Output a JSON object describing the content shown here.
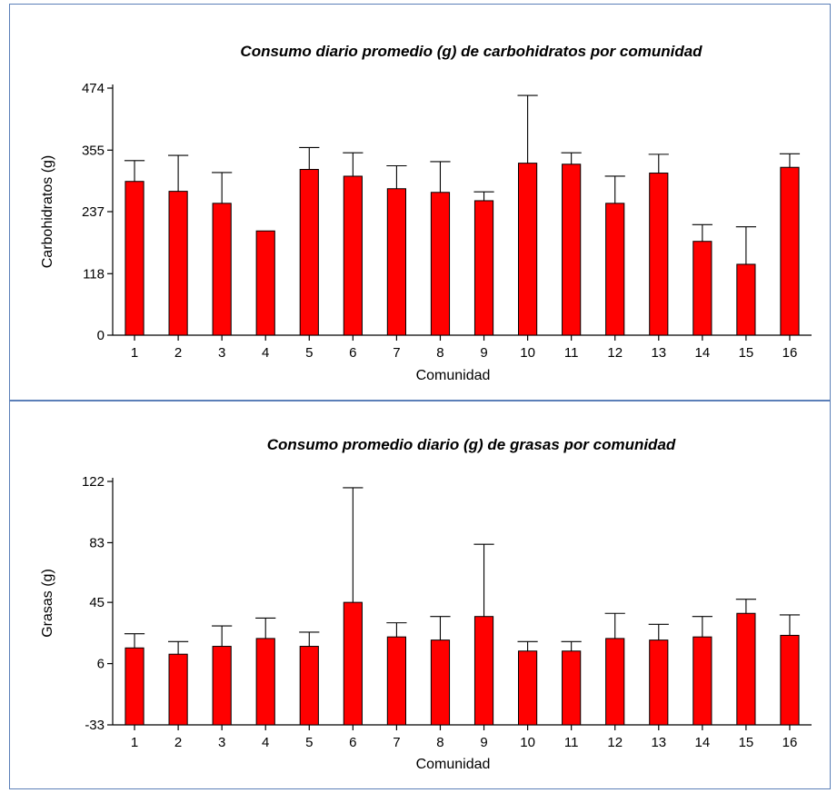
{
  "chart_data": [
    {
      "type": "bar",
      "title": "Consumo diario promedio (g)  de carbohidratos  por comunidad",
      "xlabel": "Comunidad",
      "ylabel": "Carbohidratos (g)",
      "ylim": [
        0,
        474
      ],
      "yticks": [
        0,
        118,
        237,
        355,
        474
      ],
      "categories": [
        "1",
        "2",
        "3",
        "4",
        "5",
        "6",
        "7",
        "8",
        "9",
        "10",
        "11",
        "12",
        "13",
        "14",
        "15",
        "16"
      ],
      "series": [
        {
          "values": [
            295,
            276,
            253,
            200,
            318,
            305,
            281,
            274,
            258,
            330,
            328,
            253,
            311,
            180,
            136,
            322
          ],
          "error_upper": [
            335,
            345,
            312,
            200,
            360,
            350,
            325,
            333,
            275,
            460,
            350,
            305,
            347,
            212,
            208,
            348
          ]
        }
      ],
      "bar_color": "#ff0000",
      "grid": false
    },
    {
      "type": "bar",
      "title": "Consumo promedio diario (g) de grasas por comunidad",
      "xlabel": "Comunidad",
      "ylabel": "Grasas (g)",
      "ylim": [
        -33,
        122
      ],
      "yticks": [
        -33,
        6,
        45,
        83,
        122
      ],
      "categories": [
        "1",
        "2",
        "3",
        "4",
        "5",
        "6",
        "7",
        "8",
        "9",
        "10",
        "11",
        "12",
        "13",
        "14",
        "15",
        "16"
      ],
      "series": [
        {
          "values": [
            16,
            12,
            17,
            22,
            17,
            45,
            23,
            21,
            36,
            14,
            14,
            22,
            21,
            23,
            38,
            24
          ],
          "error_upper": [
            25,
            20,
            30,
            35,
            26,
            118,
            32,
            36,
            82,
            20,
            20,
            38,
            31,
            36,
            47,
            37
          ]
        }
      ],
      "bar_color": "#ff0000",
      "grid": false
    }
  ]
}
